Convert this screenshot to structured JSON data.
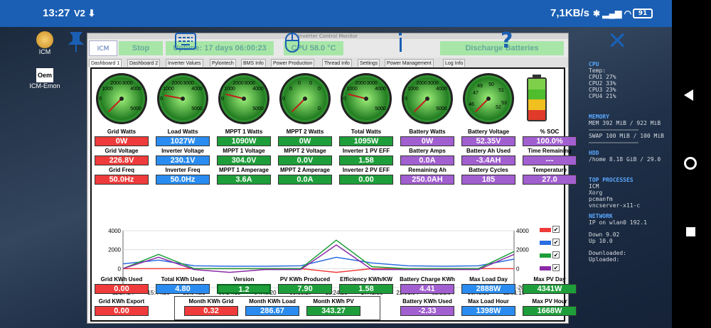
{
  "statusbar": {
    "time": "13:27",
    "left_icons": "V2 ⬇",
    "net": "7,1KB/s",
    "battery": "91"
  },
  "desktop": {
    "icons": [
      {
        "label": "ICM"
      },
      {
        "label": "ICM-Emon"
      }
    ]
  },
  "sysmon": {
    "cpu_title": "CPU",
    "temp": "Temp:",
    "cpu": [
      "CPU1 27%",
      "CPU2 33%",
      "CPU3 23%",
      "CPU4 21%"
    ],
    "mem_title": "MEMORY",
    "mem": "MEM 392 MiB / 922 MiB",
    "swap": "SWAP 100 MiB / 100 MiB",
    "hdd_title": "HDD",
    "hdd": "/home 8.18 GiB / 29.0",
    "proc_title": "TOP PROCESSES",
    "procs": [
      "ICM",
      "Xorg",
      "pcmanfm",
      "vncserver-x11-c"
    ],
    "net_title": "NETWORK",
    "ip": "IP on wlan0  192.1",
    "down": "Down  9.02",
    "up": "Up  10.0",
    "downloaded": "Downloaded:",
    "uploaded": "Uploaded:"
  },
  "window": {
    "title": "Inverter Control Monitor",
    "stop": "Stop",
    "uptime": "Uptime: 17 days 06:00:23",
    "temp": "CPU 58.0 °C",
    "discharge": "Discharge Batteries"
  },
  "tabs": [
    "Dashboard 1",
    "Dashboard 2",
    "Inverter Values",
    "Pylontech",
    "BMS Info",
    "Power Production",
    "Thread Info",
    "Settings",
    "Power Management",
    "Log Info"
  ],
  "gauges": [
    {
      "name": "grid-watts",
      "ticks": [
        "1000",
        "2000",
        "3000",
        "4000",
        "0",
        "5000"
      ],
      "value": 0
    },
    {
      "name": "load-watts",
      "ticks": [
        "1000",
        "2000",
        "3000",
        "4000",
        "0",
        "5000"
      ],
      "value": 1027
    },
    {
      "name": "mppt1-watts",
      "ticks": [
        "1000",
        "2000",
        "3000",
        "4000",
        "0",
        "5000"
      ],
      "value": 1090
    },
    {
      "name": "mppt2-watts",
      "ticks": [
        "0",
        "0",
        "0",
        "0",
        "0",
        "0"
      ],
      "value": 0
    },
    {
      "name": "total-watts",
      "ticks": [
        "1000",
        "2000",
        "3000",
        "4000",
        "0",
        "5000"
      ],
      "value": 1095
    },
    {
      "name": "battery-watts",
      "ticks": [
        "1000",
        "2000",
        "3000",
        "4000",
        "0",
        "5000"
      ],
      "value": 0
    },
    {
      "name": "battery-voltage",
      "ticks": [
        "47",
        "49",
        "50",
        "51",
        "52",
        "46",
        "53"
      ],
      "value": 52.35
    }
  ],
  "row1": {
    "labels": [
      "Grid Watts",
      "Load Watts",
      "MPPT 1 Watts",
      "MPPT 2 Watts",
      "Total Watts",
      "Battery Watts",
      "Battery Voltage",
      "% SOC"
    ],
    "values": [
      "0W",
      "1027W",
      "1090W",
      "0W",
      "1095W",
      "0W",
      "52.35V",
      "100.0%"
    ]
  },
  "row2": {
    "labels": [
      "Grid Voltage",
      "Inverter Voltage",
      "MPPT 1 Voltage",
      "MPPT 2 Voltage",
      "Inverter 1 PV EFF",
      "Battery Amps",
      "Battery Ah Used",
      "Time Remaining"
    ],
    "values": [
      "226.8V",
      "230.1V",
      "304.0V",
      "0.0V",
      "1.58",
      "0.0A",
      "-3.4AH",
      "---"
    ]
  },
  "row3": {
    "labels": [
      "Grid Freq",
      "Inverter Freq",
      "MPPT 1 Amperage",
      "MPPT 2 Amperage",
      "Inverter 2 PV EFF",
      "Remaining Ah",
      "Battery Cycles",
      "Temperature"
    ],
    "values": [
      "50.0Hz",
      "50.0Hz",
      "3.6A",
      "0.0A",
      "0.00",
      "250.0AH",
      "185",
      "27.0"
    ]
  },
  "chart_data": {
    "type": "line",
    "x": [
      "11:27:24",
      "15:44:26",
      "20:04:21",
      "00:24:19",
      "04:45:20",
      "09:05:27",
      "13:24:20",
      "17:42:33",
      "22:01:54",
      "02:21:54",
      "06:43:30",
      "11:01:15"
    ],
    "ylim": [
      -2000,
      4000
    ],
    "yticks": [
      "4000",
      "2000",
      "0",
      "-2000"
    ],
    "series": [
      {
        "color": "#ef3b3b",
        "values": [
          0,
          0,
          0,
          0,
          0,
          0,
          -400,
          0,
          0,
          0,
          0,
          0
        ]
      },
      {
        "color": "#2a6de0",
        "values": [
          500,
          900,
          300,
          250,
          250,
          300,
          1200,
          600,
          300,
          250,
          300,
          1000
        ]
      },
      {
        "color": "#1e9e3a",
        "values": [
          0,
          1500,
          0,
          0,
          0,
          0,
          3000,
          200,
          0,
          0,
          0,
          1800
        ]
      },
      {
        "color": "#8a2aa8",
        "values": [
          0,
          1200,
          -100,
          -400,
          -100,
          -100,
          2500,
          -100,
          -100,
          -100,
          -100,
          1500
        ]
      }
    ]
  },
  "row4": {
    "labels": [
      "Grid KWh Used",
      "Total KWh Used",
      "Version",
      "PV KWh Produced",
      "Efficiency KWh/KW",
      "Battery Charge KWh",
      "Max Load Day",
      "Max PV Day"
    ],
    "values": [
      "0.00",
      "4.80",
      "1.2",
      "7.90",
      "1.58",
      "4.41",
      "2888W",
      "4341W"
    ]
  },
  "row5": {
    "labels": [
      "Grid KWh Export",
      "Month KWh Grid",
      "Month KWh Load",
      "Month KWh PV",
      "Battery KWh Used",
      "Max Load Hour",
      "Max PV Hour"
    ],
    "values": [
      "0.00",
      "0.32",
      "286.67",
      "343.27",
      "-2.33",
      "1398W",
      "1668W"
    ]
  },
  "colors": {
    "red": "#ef3b3b",
    "blue": "#2a8cf0",
    "green": "#1e9e3a",
    "purple": "#a25fd0"
  }
}
